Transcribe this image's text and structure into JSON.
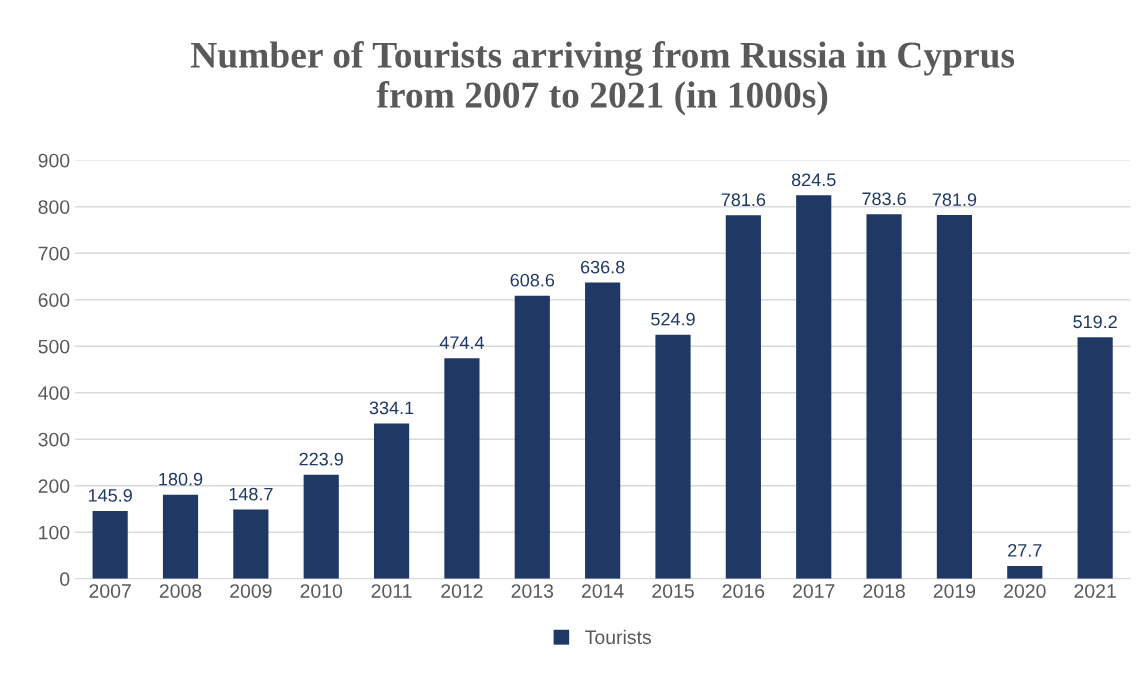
{
  "chart_data": {
    "type": "bar",
    "title": "Number of Tourists arriving from Russia in Cyprus\nfrom 2007 to 2021 (in 1000s)",
    "categories": [
      "2007",
      "2008",
      "2009",
      "2010",
      "2011",
      "2012",
      "2013",
      "2014",
      "2015",
      "2016",
      "2017",
      "2018",
      "2019",
      "2020",
      "2021"
    ],
    "series": [
      {
        "name": "Tourists",
        "color": "#1f3864",
        "values": [
          145.9,
          180.9,
          148.7,
          223.9,
          334.1,
          474.4,
          608.6,
          636.8,
          524.9,
          781.6,
          824.5,
          783.6,
          781.9,
          27.7,
          519.2
        ]
      }
    ],
    "ylim": [
      0,
      900
    ],
    "yticks": [
      0,
      100,
      200,
      300,
      400,
      500,
      600,
      700,
      800,
      900
    ],
    "grid": "y",
    "legend": "bottom",
    "data_labels": true
  }
}
